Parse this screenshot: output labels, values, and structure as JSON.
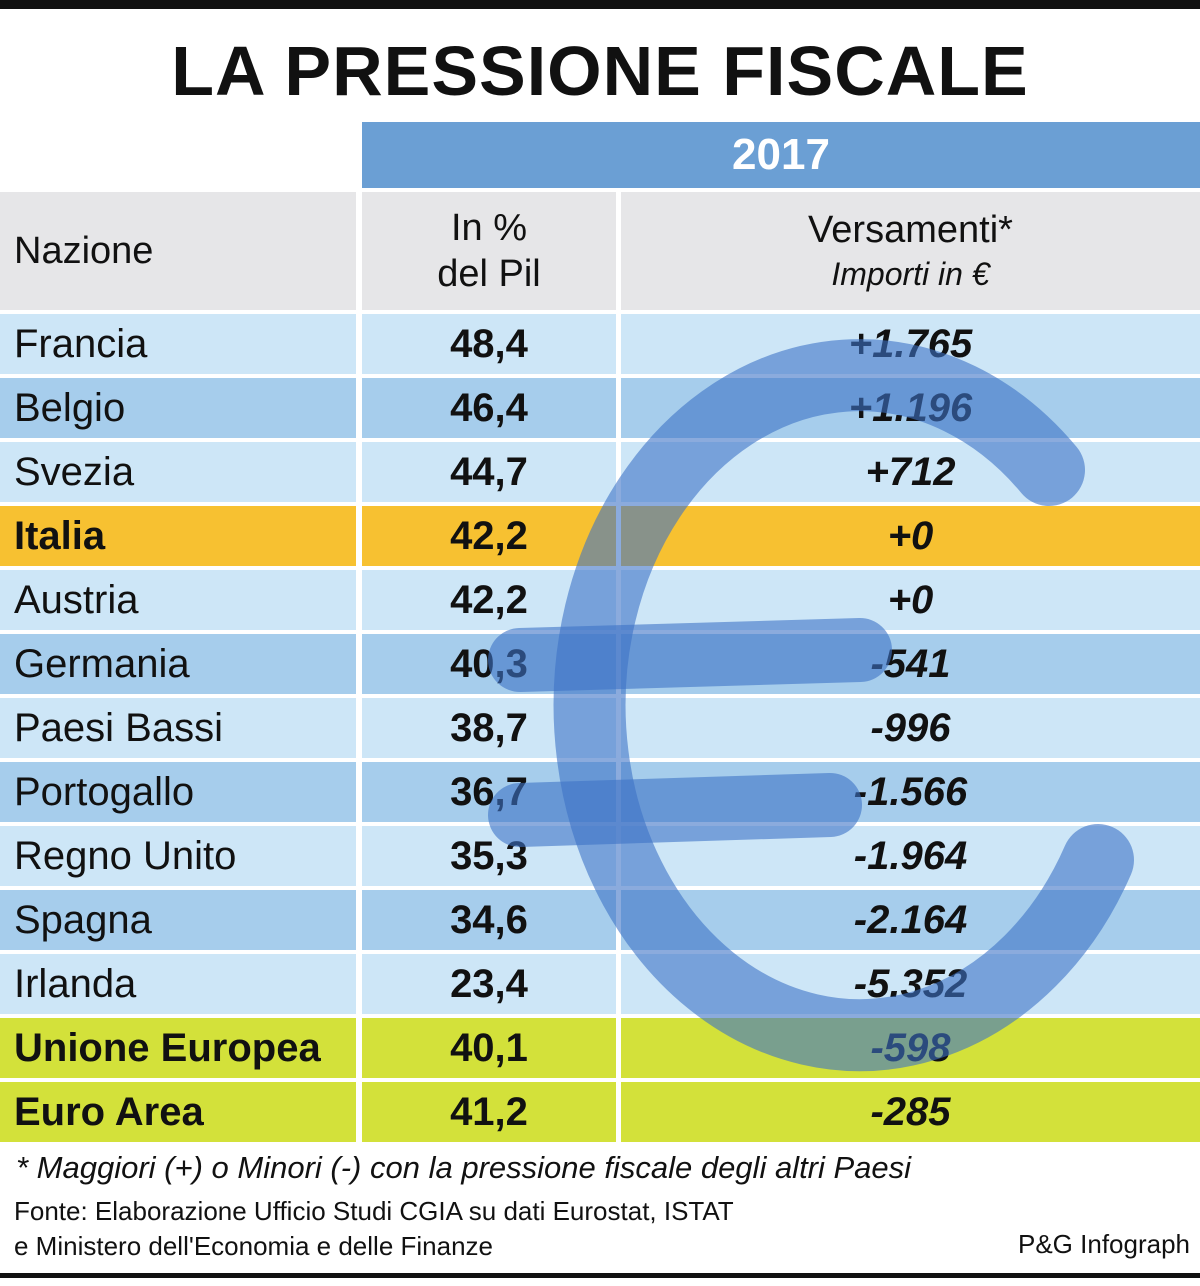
{
  "title": "LA PRESSIONE FISCALE",
  "year": "2017",
  "headers": {
    "nation": "Nazione",
    "pct_line1": "In %",
    "pct_line2": "del Pil",
    "vers_line1": "Versamenti*",
    "vers_line2": "Importi in €"
  },
  "chart_data": {
    "type": "table",
    "title": "LA PRESSIONE FISCALE",
    "columns": [
      "Nazione",
      "In % del Pil",
      "Versamenti* Importi in €"
    ],
    "rows": [
      {
        "nation": "Francia",
        "pct": "48,4",
        "vers": "+1.765",
        "style": "light"
      },
      {
        "nation": "Belgio",
        "pct": "46,4",
        "vers": "+1.196",
        "style": "dark"
      },
      {
        "nation": "Svezia",
        "pct": "44,7",
        "vers": "+712",
        "style": "light"
      },
      {
        "nation": "Italia",
        "pct": "42,2",
        "vers": "+0",
        "style": "italy"
      },
      {
        "nation": "Austria",
        "pct": "42,2",
        "vers": "+0",
        "style": "light"
      },
      {
        "nation": "Germania",
        "pct": "40,3",
        "vers": "-541",
        "style": "dark"
      },
      {
        "nation": "Paesi Bassi",
        "pct": "38,7",
        "vers": "-996",
        "style": "light"
      },
      {
        "nation": "Portogallo",
        "pct": "36,7",
        "vers": "-1.566",
        "style": "dark"
      },
      {
        "nation": "Regno Unito",
        "pct": "35,3",
        "vers": "-1.964",
        "style": "light"
      },
      {
        "nation": "Spagna",
        "pct": "34,6",
        "vers": "-2.164",
        "style": "dark"
      },
      {
        "nation": "Irlanda",
        "pct": "23,4",
        "vers": "-5.352",
        "style": "light"
      },
      {
        "nation": "Unione Europea",
        "pct": "40,1",
        "vers": "-598",
        "style": "eu"
      },
      {
        "nation": "Euro Area",
        "pct": "41,2",
        "vers": "-285",
        "style": "eu"
      }
    ]
  },
  "colors": {
    "year_band": "#6b9fd4",
    "row_light": "#cde6f7",
    "row_dark": "#a6cdec",
    "italy": "#f7c131",
    "aggregate": "#d3e13a",
    "euro_symbol": "#3d73c7"
  },
  "watermark_icon": "euro-symbol-icon",
  "footnote": "* Maggiori (+) o Minori (-) con la pressione fiscale degli altri Paesi",
  "source_line1": "Fonte: Elaborazione Ufficio Studi CGIA su dati Eurostat, ISTAT",
  "source_line2": "e Ministero dell'Economia e delle Finanze",
  "credit": "P&G Infograph"
}
